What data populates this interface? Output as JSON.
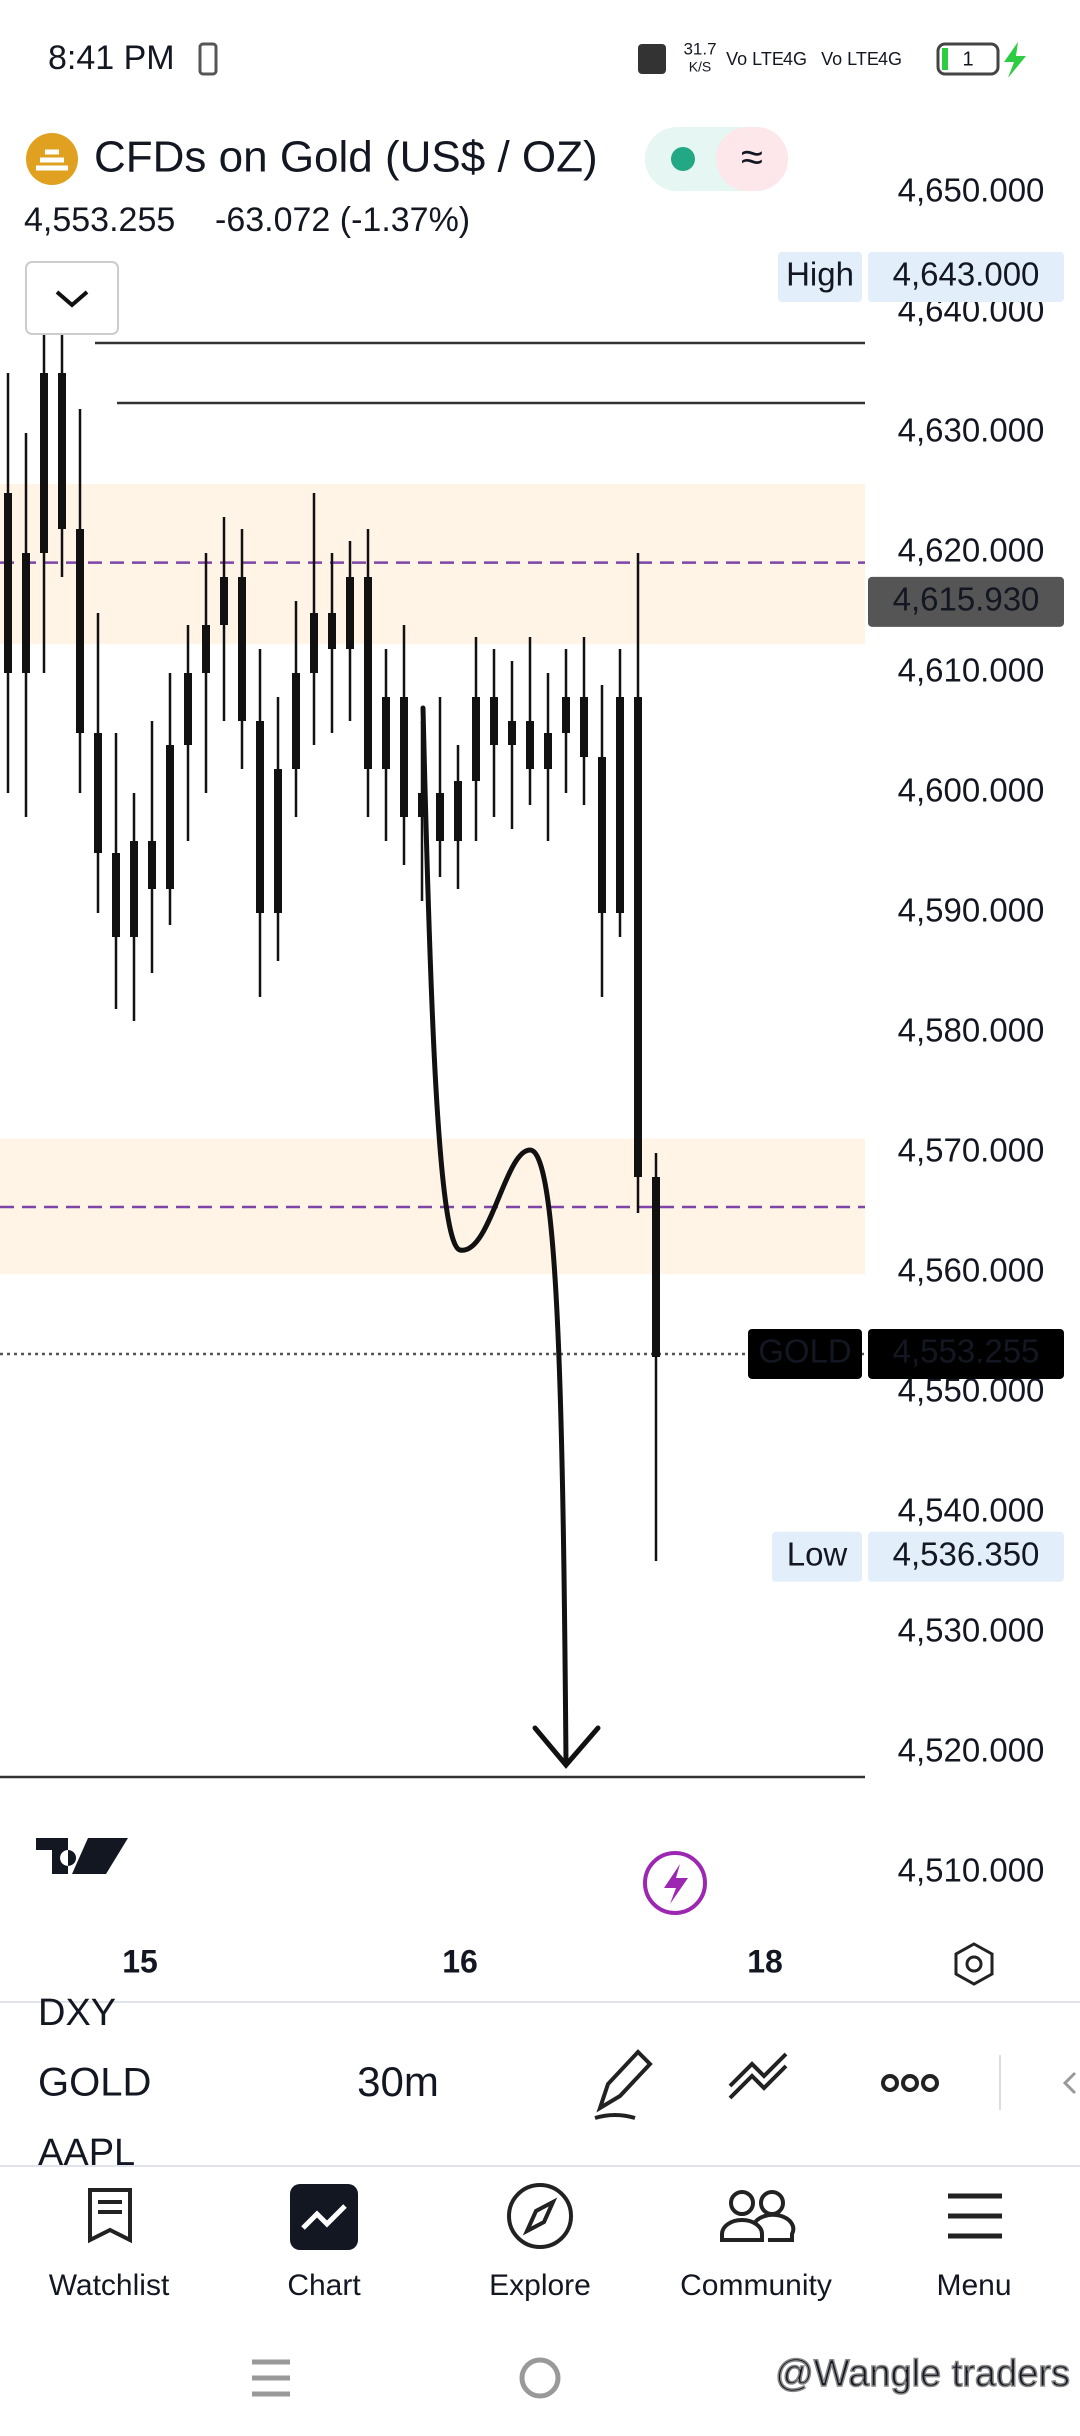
{
  "status_bar": {
    "time": "8:41 PM",
    "speed": "31.7",
    "speed_unit": "K/S",
    "net1": "Vo LTE",
    "net2": "4G",
    "battery": "1"
  },
  "chart_data": {
    "type": "candlestick",
    "title": "CFDs on Gold (US$ / OZ)",
    "price": "4,553.255",
    "change": "-63.072 (-1.37%)",
    "ylim": [
      4505,
      4655
    ],
    "yticks": [
      {
        "value": 4510,
        "label": "4,510.000"
      },
      {
        "value": 4520,
        "label": "4,520.000"
      },
      {
        "value": 4530,
        "label": "4,530.000"
      },
      {
        "value": 4540,
        "label": "4,540.000"
      },
      {
        "value": 4550,
        "label": "4,550.000"
      },
      {
        "value": 4560,
        "label": "4,560.000"
      },
      {
        "value": 4570,
        "label": "4,570.000"
      },
      {
        "value": 4580,
        "label": "4,580.000"
      },
      {
        "value": 4590,
        "label": "4,590.000"
      },
      {
        "value": 4600,
        "label": "4,600.000"
      },
      {
        "value": 4610,
        "label": "4,610.000"
      },
      {
        "value": 4620,
        "label": "4,620.000"
      },
      {
        "value": 4630,
        "label": "4,630.000"
      },
      {
        "value": 4640,
        "label": "4,640.000"
      },
      {
        "value": 4650,
        "label": "4,650.000"
      }
    ],
    "x_labels": [
      "15",
      "16",
      "18"
    ],
    "candle_color": "#111111",
    "candles": [
      {
        "o": 4625,
        "h": 4635,
        "l": 4600,
        "c": 4610
      },
      {
        "o": 4610,
        "h": 4630,
        "l": 4598,
        "c": 4620
      },
      {
        "o": 4620,
        "h": 4642,
        "l": 4610,
        "c": 4635
      },
      {
        "o": 4635,
        "h": 4643,
        "l": 4618,
        "c": 4622
      },
      {
        "o": 4622,
        "h": 4632,
        "l": 4600,
        "c": 4605
      },
      {
        "o": 4605,
        "h": 4615,
        "l": 4590,
        "c": 4595
      },
      {
        "o": 4595,
        "h": 4605,
        "l": 4582,
        "c": 4588
      },
      {
        "o": 4588,
        "h": 4600,
        "l": 4581,
        "c": 4596
      },
      {
        "o": 4596,
        "h": 4606,
        "l": 4585,
        "c": 4592
      },
      {
        "o": 4592,
        "h": 4610,
        "l": 4589,
        "c": 4604
      },
      {
        "o": 4604,
        "h": 4614,
        "l": 4596,
        "c": 4610
      },
      {
        "o": 4610,
        "h": 4620,
        "l": 4600,
        "c": 4614
      },
      {
        "o": 4614,
        "h": 4623,
        "l": 4606,
        "c": 4618
      },
      {
        "o": 4618,
        "h": 4622,
        "l": 4602,
        "c": 4606
      },
      {
        "o": 4606,
        "h": 4612,
        "l": 4583,
        "c": 4590
      },
      {
        "o": 4590,
        "h": 4608,
        "l": 4586,
        "c": 4602
      },
      {
        "o": 4602,
        "h": 4616,
        "l": 4598,
        "c": 4610
      },
      {
        "o": 4610,
        "h": 4625,
        "l": 4604,
        "c": 4615
      },
      {
        "o": 4615,
        "h": 4620,
        "l": 4605,
        "c": 4612
      },
      {
        "o": 4612,
        "h": 4621,
        "l": 4606,
        "c": 4618
      },
      {
        "o": 4618,
        "h": 4622,
        "l": 4598,
        "c": 4602
      },
      {
        "o": 4602,
        "h": 4612,
        "l": 4596,
        "c": 4608
      },
      {
        "o": 4608,
        "h": 4614,
        "l": 4594,
        "c": 4598
      },
      {
        "o": 4598,
        "h": 4606,
        "l": 4591,
        "c": 4600
      },
      {
        "o": 4600,
        "h": 4608,
        "l": 4593,
        "c": 4596
      },
      {
        "o": 4596,
        "h": 4604,
        "l": 4592,
        "c": 4601
      },
      {
        "o": 4601,
        "h": 4613,
        "l": 4596,
        "c": 4608
      },
      {
        "o": 4608,
        "h": 4612,
        "l": 4598,
        "c": 4604
      },
      {
        "o": 4604,
        "h": 4611,
        "l": 4597,
        "c": 4606
      },
      {
        "o": 4606,
        "h": 4613,
        "l": 4599,
        "c": 4602
      },
      {
        "o": 4602,
        "h": 4610,
        "l": 4596,
        "c": 4605
      },
      {
        "o": 4605,
        "h": 4612,
        "l": 4600,
        "c": 4608
      },
      {
        "o": 4608,
        "h": 4613,
        "l": 4599,
        "c": 4603
      },
      {
        "o": 4603,
        "h": 4609,
        "l": 4583,
        "c": 4590
      },
      {
        "o": 4590,
        "h": 4612,
        "l": 4588,
        "c": 4608
      },
      {
        "o": 4608,
        "h": 4620,
        "l": 4565,
        "c": 4568
      },
      {
        "o": 4568,
        "h": 4570,
        "l": 4536,
        "c": 4553
      }
    ],
    "zones": [
      {
        "from": 4612.4,
        "to": 4625.75
      },
      {
        "from": 4559.9,
        "to": 4571.2
      }
    ],
    "zone_color": "#fff4e6",
    "levels": [
      {
        "value": 4637.5,
        "style": "solid",
        "color": "#333333"
      },
      {
        "value": 4632.5,
        "style": "solid",
        "color": "#333333"
      },
      {
        "value": 4619.2,
        "style": "dashed",
        "color": "#7d45a8"
      },
      {
        "value": 4565.5,
        "style": "dashed",
        "color": "#7d45a8"
      },
      {
        "value": 4553.255,
        "style": "dotted",
        "color": "#555555"
      },
      {
        "value": 4518,
        "style": "solid",
        "color": "#333333"
      }
    ],
    "high": {
      "name": "High",
      "value": 4643,
      "label": "4,643.000"
    },
    "low": {
      "name": "Low",
      "value": 4536.35,
      "label": "4,536.350"
    },
    "last": {
      "name": "GOLD",
      "value": 4553.255,
      "label": "4,553.255"
    },
    "bar_price": {
      "value": 4615.93,
      "label": "4,615.930"
    }
  },
  "toolbar": {
    "symbols": [
      "DXY",
      "GOLD",
      "AAPL"
    ],
    "interval": "30m"
  },
  "nav": [
    "Watchlist",
    "Chart",
    "Explore",
    "Community",
    "Menu"
  ],
  "watermark": "@Wangle traders"
}
